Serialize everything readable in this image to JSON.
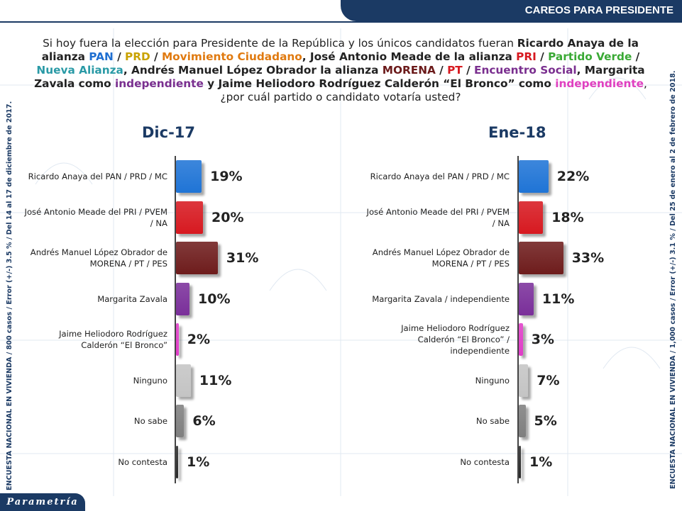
{
  "header": {
    "title": "CAREOS PARA PRESIDENTE"
  },
  "question": [
    {
      "t": "Si hoy fuera la elección para Presidente de la República y los únicos candidatos fueran ",
      "c": "#222222",
      "b": false
    },
    {
      "t": "Ricardo Anaya de la alianza ",
      "c": "#222222",
      "b": true
    },
    {
      "t": "PAN",
      "c": "#1f6fd1",
      "b": true
    },
    {
      "t": " / ",
      "c": "#222222",
      "b": true
    },
    {
      "t": "PRD",
      "c": "#c9a200",
      "b": true
    },
    {
      "t": " / ",
      "c": "#222222",
      "b": true
    },
    {
      "t": "Movimiento Ciudadano",
      "c": "#e07a10",
      "b": true
    },
    {
      "t": ", José Antonio Meade de la alianza ",
      "c": "#222222",
      "b": true
    },
    {
      "t": "PRI",
      "c": "#d71920",
      "b": true
    },
    {
      "t": " / ",
      "c": "#222222",
      "b": true
    },
    {
      "t": "Partido Verde",
      "c": "#3aa935",
      "b": true
    },
    {
      "t": " / ",
      "c": "#222222",
      "b": true
    },
    {
      "t": "Nueva Alianza",
      "c": "#2a9aa6",
      "b": true
    },
    {
      "t": ", Andrés Manuel López Obrador la alianza ",
      "c": "#222222",
      "b": true
    },
    {
      "t": "MORENA",
      "c": "#6b1a1a",
      "b": true
    },
    {
      "t": " / ",
      "c": "#222222",
      "b": true
    },
    {
      "t": "PT",
      "c": "#d71920",
      "b": true
    },
    {
      "t": " / ",
      "c": "#222222",
      "b": true
    },
    {
      "t": "Encuentro Social",
      "c": "#7a2f8f",
      "b": true
    },
    {
      "t": ", Margarita Zavala como ",
      "c": "#222222",
      "b": true
    },
    {
      "t": "independiente",
      "c": "#7a2f8f",
      "b": true
    },
    {
      "t": " y Jaime Heliodoro Rodríguez Calderón  “El Bronco” como ",
      "c": "#222222",
      "b": true
    },
    {
      "t": "independiente",
      "c": "#e040c0",
      "b": true
    },
    {
      "t": ", ¿por cuál partido o candidato votaría usted?",
      "c": "#222222",
      "b": false
    }
  ],
  "chart_data": [
    {
      "type": "bar",
      "title": "Dic-17",
      "categories": [
        "Ricardo Anaya del PAN / PRD / MC",
        "José Antonio Meade del PRI / PVEM / NA",
        "Andrés Manuel López Obrador de MORENA / PT / PES",
        "Margarita Zavala",
        "Jaime Heliodoro Rodríguez Calderón  “El Bronco”",
        "Ninguno",
        "No sabe",
        "No contesta"
      ],
      "values": [
        19,
        20,
        31,
        10,
        2,
        11,
        6,
        1
      ],
      "labels": [
        "19%",
        "20%",
        "31%",
        "10%",
        "2%",
        "11%",
        "6%",
        "1%"
      ],
      "colors": [
        "#1f74d6",
        "#d71920",
        "#6e1c1c",
        "#7a2f9a",
        "#e03cc8",
        "#c4c4c4",
        "#7f7f7f",
        "#2a2a2a"
      ],
      "orientation": "horizontal"
    },
    {
      "type": "bar",
      "title": "Ene-18",
      "categories": [
        "Ricardo Anaya del PAN / PRD / MC",
        "José Antonio Meade del PRI / PVEM / NA",
        "Andrés Manuel López Obrador de MORENA / PT / PES",
        "Margarita Zavala / independiente",
        "Jaime Heliodoro Rodríguez Calderón  “El Bronco” / independiente",
        "Ninguno",
        "No sabe",
        "No contesta"
      ],
      "values": [
        22,
        18,
        33,
        11,
        3,
        7,
        5,
        1
      ],
      "labels": [
        "22%",
        "18%",
        "33%",
        "11%",
        "3%",
        "7%",
        "5%",
        "1%"
      ],
      "colors": [
        "#1f74d6",
        "#d71920",
        "#6e1c1c",
        "#7a2f9a",
        "#e03cc8",
        "#c4c4c4",
        "#7f7f7f",
        "#2a2a2a"
      ],
      "orientation": "horizontal"
    }
  ],
  "notes": {
    "left": "ENCUESTA NACIONAL EN VIVIENDA / 800 casos / Error (+/-) 3.5 % / Del 14 al 17 de diciembre de 2017.",
    "right": "ENCUESTA NACIONAL EN VIVIENDA / 1,000 casos / Error (+/-) 3.1 % / Del 25 de enero al 2 de febrero de 2018."
  },
  "logo": {
    "text": "Parametría"
  }
}
